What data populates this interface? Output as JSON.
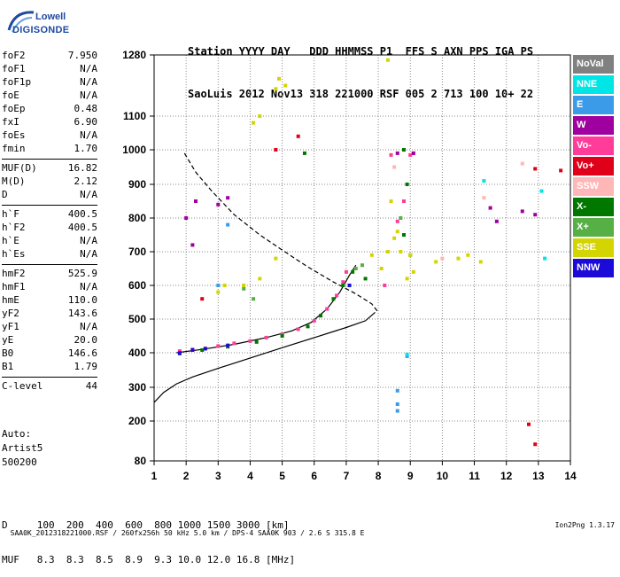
{
  "logo": {
    "line1": "Lowell",
    "line2": "DIGISONDE"
  },
  "header": {
    "line1": "Station YYYY DAY   DDD HHMMSS P1  FFS S AXN PPS IGA PS",
    "line2": "SaoLuis 2012 Nov13 318 221000 RSF 005 2 713 100 10+ 22"
  },
  "params": {
    "group1": [
      {
        "k": "foF2",
        "v": "7.950"
      },
      {
        "k": "foF1",
        "v": "N/A"
      },
      {
        "k": "foF1p",
        "v": "N/A"
      },
      {
        "k": "foE",
        "v": "N/A"
      },
      {
        "k": "foEp",
        "v": "0.48"
      },
      {
        "k": "fxI",
        "v": "6.90"
      },
      {
        "k": "foEs",
        "v": "N/A"
      },
      {
        "k": "fmin",
        "v": "1.70"
      }
    ],
    "group2": [
      {
        "k": "MUF(D)",
        "v": "16.82"
      },
      {
        "k": "M(D)",
        "v": "2.12"
      },
      {
        "k": "D",
        "v": "N/A"
      }
    ],
    "group3": [
      {
        "k": "h`F",
        "v": "400.5"
      },
      {
        "k": "h`F2",
        "v": "400.5"
      },
      {
        "k": "h`E",
        "v": "N/A"
      },
      {
        "k": "h`Es",
        "v": "N/A"
      }
    ],
    "group4": [
      {
        "k": "hmF2",
        "v": "525.9"
      },
      {
        "k": "hmF1",
        "v": "N/A"
      },
      {
        "k": "hmE",
        "v": "110.0"
      },
      {
        "k": "yF2",
        "v": "143.6"
      },
      {
        "k": "yF1",
        "v": "N/A"
      },
      {
        "k": "yE",
        "v": "20.0"
      },
      {
        "k": "B0",
        "v": "146.6"
      },
      {
        "k": "B1",
        "v": "1.79"
      }
    ],
    "group5": [
      {
        "k": "C-level",
        "v": "44"
      }
    ]
  },
  "auto": {
    "line1": "Auto:",
    "line2": "Artist5",
    "line3": "500200"
  },
  "bottom": {
    "line1": "D     100  200  400  600  800 1000 1500 3000 [km]",
    "line2": "MUF   8.3  8.3  8.5  8.9  9.3 10.0 12.0 16.8 [MHz]"
  },
  "footer": {
    "left": "SAA0K_2012318221000.RSF / 260fx256h 50 kHz 5.0 km / DPS-4 SAA0K 903 / 2.6 S 315.8 E",
    "right": "Ion2Png 1.3.17"
  },
  "legend": [
    {
      "label": "NoVal",
      "color": "#808080"
    },
    {
      "label": "NNE",
      "color": "#00e5e5"
    },
    {
      "label": "E",
      "color": "#3c9be8"
    },
    {
      "label": "W",
      "color": "#a000a0"
    },
    {
      "label": "Vo-",
      "color": "#ff3c9a"
    },
    {
      "label": "Vo+",
      "color": "#e0001a"
    },
    {
      "label": "SSW",
      "color": "#ffb6b6"
    },
    {
      "label": "X-",
      "color": "#007800"
    },
    {
      "label": "X+",
      "color": "#56b045"
    },
    {
      "label": "SSE",
      "color": "#d4d400"
    },
    {
      "label": "NNW",
      "color": "#1c0ad8"
    }
  ],
  "chart_data": {
    "type": "scatter",
    "x_ticks": [
      "1",
      "2",
      "3",
      "4",
      "5",
      "6",
      "7",
      "8",
      "9",
      "10",
      "11",
      "12",
      "13",
      "14"
    ],
    "y_ticks": [
      "80",
      "200",
      "300",
      "400",
      "500",
      "600",
      "700",
      "800",
      "900",
      "1000",
      "1100",
      "1280"
    ],
    "xlim": [
      1,
      14
    ],
    "ylim": [
      80,
      1280
    ],
    "grid": "dotted",
    "series": [
      {
        "color": "#000000",
        "style": "solid",
        "points": [
          [
            1.0,
            255
          ],
          [
            1.3,
            285
          ],
          [
            1.7,
            310
          ],
          [
            2.2,
            330
          ],
          [
            3.0,
            355
          ],
          [
            4.0,
            385
          ],
          [
            5.0,
            415
          ],
          [
            6.0,
            445
          ],
          [
            7.0,
            475
          ],
          [
            7.6,
            495
          ],
          [
            7.9,
            520
          ]
        ]
      },
      {
        "color": "#000000",
        "style": "dashed",
        "points": [
          [
            1.95,
            990
          ],
          [
            2.3,
            935
          ],
          [
            2.8,
            880
          ],
          [
            3.5,
            810
          ],
          [
            4.3,
            750
          ],
          [
            5.0,
            705
          ],
          [
            5.8,
            655
          ],
          [
            6.6,
            610
          ],
          [
            7.3,
            575
          ],
          [
            7.8,
            545
          ],
          [
            8.0,
            520
          ]
        ]
      },
      {
        "color": "#000000",
        "style": "solid",
        "points": [
          [
            1.7,
            400
          ],
          [
            2.5,
            410
          ],
          [
            3.5,
            425
          ],
          [
            4.5,
            445
          ],
          [
            5.3,
            465
          ],
          [
            5.9,
            490
          ],
          [
            6.4,
            530
          ],
          [
            6.8,
            580
          ],
          [
            7.1,
            630
          ],
          [
            7.3,
            660
          ]
        ]
      },
      {
        "name": "Vo-",
        "color": "#ff3c9a",
        "points": [
          [
            1.8,
            405
          ],
          [
            2.2,
            410
          ],
          [
            2.6,
            413
          ],
          [
            3.0,
            420
          ],
          [
            3.5,
            428
          ],
          [
            4.0,
            435
          ],
          [
            4.5,
            445
          ],
          [
            5.0,
            455
          ],
          [
            5.5,
            470
          ],
          [
            6.0,
            495
          ],
          [
            6.4,
            530
          ],
          [
            6.7,
            570
          ],
          [
            6.9,
            610
          ],
          [
            7.0,
            640
          ],
          [
            8.2,
            600
          ],
          [
            8.3,
            700
          ],
          [
            8.6,
            790
          ],
          [
            8.8,
            850
          ],
          [
            9.0,
            985
          ],
          [
            8.4,
            985
          ],
          [
            9.1,
            990
          ]
        ]
      },
      {
        "name": "X-",
        "color": "#007800",
        "points": [
          [
            1.8,
            400
          ],
          [
            2.5,
            408
          ],
          [
            3.3,
            418
          ],
          [
            4.2,
            432
          ],
          [
            5.0,
            450
          ],
          [
            5.8,
            478
          ],
          [
            6.2,
            510
          ],
          [
            6.6,
            560
          ],
          [
            6.9,
            600
          ],
          [
            7.2,
            640
          ],
          [
            8.8,
            1000
          ],
          [
            8.9,
            900
          ],
          [
            8.8,
            750
          ],
          [
            5.7,
            990
          ],
          [
            7.6,
            620
          ]
        ]
      },
      {
        "name": "X+",
        "color": "#56b045",
        "points": [
          [
            7.3,
            650
          ],
          [
            7.5,
            660
          ],
          [
            8.7,
            800
          ],
          [
            9.0,
            690
          ],
          [
            4.1,
            560
          ],
          [
            3.8,
            590
          ]
        ]
      },
      {
        "name": "SSE",
        "color": "#d4d400",
        "points": [
          [
            3.0,
            580
          ],
          [
            3.2,
            600
          ],
          [
            3.8,
            600
          ],
          [
            4.3,
            620
          ],
          [
            4.8,
            680
          ],
          [
            4.1,
            1080
          ],
          [
            4.3,
            1100
          ],
          [
            4.8,
            1180
          ],
          [
            4.9,
            1210
          ],
          [
            5.1,
            1190
          ],
          [
            8.3,
            700
          ],
          [
            8.5,
            740
          ],
          [
            8.7,
            700
          ],
          [
            9.0,
            690
          ],
          [
            9.1,
            640
          ],
          [
            8.9,
            620
          ],
          [
            8.6,
            760
          ],
          [
            8.4,
            850
          ],
          [
            10.5,
            680
          ],
          [
            10.8,
            690
          ],
          [
            11.2,
            670
          ],
          [
            7.8,
            690
          ],
          [
            8.1,
            650
          ],
          [
            9.8,
            670
          ],
          [
            8.3,
            1265
          ]
        ]
      },
      {
        "name": "NNW",
        "color": "#1c0ad8",
        "points": [
          [
            1.8,
            398
          ],
          [
            2.2,
            408
          ],
          [
            2.6,
            412
          ],
          [
            3.3,
            422
          ],
          [
            7.1,
            600
          ]
        ]
      },
      {
        "name": "W",
        "color": "#a000a0",
        "points": [
          [
            3.0,
            840
          ],
          [
            3.3,
            860
          ],
          [
            8.6,
            990
          ],
          [
            9.1,
            990
          ],
          [
            11.5,
            830
          ],
          [
            11.7,
            790
          ],
          [
            12.5,
            820
          ],
          [
            12.9,
            810
          ],
          [
            2.0,
            800
          ],
          [
            2.2,
            720
          ],
          [
            2.3,
            850
          ]
        ]
      },
      {
        "name": "E",
        "color": "#3c9be8",
        "points": [
          [
            8.6,
            290
          ],
          [
            8.6,
            250
          ],
          [
            8.6,
            230
          ],
          [
            8.9,
            390
          ],
          [
            3.3,
            780
          ],
          [
            3.0,
            600
          ]
        ]
      },
      {
        "name": "Vo+",
        "color": "#e0001a",
        "points": [
          [
            13.7,
            940
          ],
          [
            12.9,
            945
          ],
          [
            12.7,
            190
          ],
          [
            12.9,
            130
          ],
          [
            4.8,
            1000
          ],
          [
            5.5,
            1040
          ],
          [
            2.5,
            560
          ]
        ]
      },
      {
        "name": "SSW",
        "color": "#ffb6b6",
        "points": [
          [
            12.5,
            960
          ],
          [
            11.3,
            860
          ],
          [
            8.5,
            950
          ],
          [
            10.0,
            680
          ]
        ]
      },
      {
        "name": "NNE",
        "color": "#00e5e5",
        "points": [
          [
            13.1,
            880
          ],
          [
            11.3,
            910
          ],
          [
            13.2,
            680
          ],
          [
            8.9,
            395
          ]
        ]
      }
    ]
  }
}
